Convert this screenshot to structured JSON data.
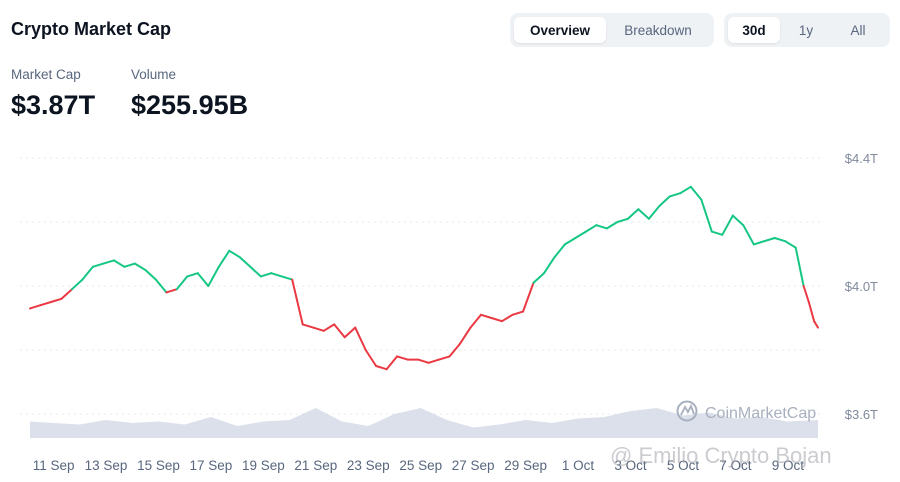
{
  "header": {
    "title": "Crypto Market Cap",
    "view_tabs": [
      {
        "label": "Overview",
        "active": true
      },
      {
        "label": "Breakdown",
        "active": false
      }
    ],
    "range_tabs": [
      {
        "label": "30d",
        "active": true
      },
      {
        "label": "1y",
        "active": false
      },
      {
        "label": "All",
        "active": false
      }
    ]
  },
  "stats": {
    "market_cap_label": "Market Cap",
    "market_cap_value": "$3.87T",
    "volume_label": "Volume",
    "volume_value": "$255.95B"
  },
  "colors": {
    "up": "#16c784",
    "down": "#ea3943",
    "volume": "#cfd6e4",
    "grid": "#e6e9ee",
    "axis_text": "#808a9d"
  },
  "baseline_value": 4.0,
  "chart_data": {
    "type": "line",
    "y_tick_labels": [
      "$4.4T",
      "$4.0T",
      "$3.6T"
    ],
    "y_ticks": [
      4.4,
      4.0,
      3.6
    ],
    "ylim": [
      3.55,
      4.45
    ],
    "x_tick_labels": [
      "11 Sep",
      "13 Sep",
      "15 Sep",
      "17 Sep",
      "19 Sep",
      "21 Sep",
      "23 Sep",
      "25 Sep",
      "27 Sep",
      "29 Sep",
      "1 Oct",
      "3 Oct",
      "5 Oct",
      "7 Oct",
      "9 Oct"
    ],
    "x_ticks": [
      1,
      3,
      5,
      7,
      9,
      11,
      13,
      15,
      17,
      19,
      21,
      23,
      25,
      27,
      29
    ],
    "xlim": [
      0.1,
      30.15
    ],
    "series": [
      {
        "x": [
          0.1,
          0.5,
          0.9,
          1.3,
          1.7,
          2.1,
          2.5,
          2.9,
          3.3,
          3.7,
          4.1,
          4.5,
          4.9,
          5.3,
          5.7,
          6.1,
          6.5,
          6.9,
          7.3,
          7.7,
          8.1,
          8.5,
          8.9,
          9.3,
          9.7,
          10.1,
          10.5,
          10.9,
          11.3,
          11.7,
          12.1,
          12.5,
          12.9,
          13.3,
          13.7,
          14.1,
          14.5,
          14.9,
          15.3,
          15.7,
          16.1,
          16.5,
          16.9,
          17.3,
          17.7,
          18.1,
          18.5,
          18.9,
          19.3,
          19.7,
          20.1,
          20.5,
          20.9,
          21.3,
          21.7,
          22.1,
          22.5,
          22.9,
          23.3,
          23.7,
          24.1,
          24.5,
          24.9,
          25.3,
          25.7,
          26.1,
          26.5,
          26.9,
          27.3,
          27.7,
          28.1,
          28.5,
          28.9,
          29.3,
          29.6,
          29.8,
          30.0,
          30.15
        ],
        "values": [
          3.93,
          3.94,
          3.95,
          3.96,
          3.99,
          4.02,
          4.06,
          4.07,
          4.08,
          4.06,
          4.07,
          4.05,
          4.02,
          3.98,
          3.99,
          4.03,
          4.04,
          4.0,
          4.06,
          4.11,
          4.09,
          4.06,
          4.03,
          4.04,
          4.03,
          4.02,
          3.88,
          3.87,
          3.86,
          3.88,
          3.84,
          3.87,
          3.8,
          3.75,
          3.74,
          3.78,
          3.77,
          3.77,
          3.76,
          3.77,
          3.78,
          3.82,
          3.87,
          3.91,
          3.9,
          3.89,
          3.91,
          3.92,
          4.01,
          4.04,
          4.09,
          4.13,
          4.15,
          4.17,
          4.19,
          4.18,
          4.2,
          4.21,
          4.24,
          4.21,
          4.25,
          4.28,
          4.29,
          4.31,
          4.27,
          4.17,
          4.16,
          4.22,
          4.19,
          4.13,
          4.14,
          4.15,
          4.14,
          4.12,
          4.0,
          3.95,
          3.89,
          3.87
        ]
      }
    ],
    "volume": {
      "x": [
        0.1,
        1.0,
        2.0,
        3.0,
        4.0,
        5.0,
        6.0,
        7.0,
        8.0,
        9.0,
        10.0,
        11.0,
        12.0,
        13.0,
        14.0,
        15.0,
        16.0,
        17.0,
        18.0,
        19.0,
        20.0,
        21.0,
        22.0,
        23.0,
        24.0,
        25.0,
        26.0,
        27.0,
        28.0,
        29.0,
        30.15
      ],
      "values": [
        0.55,
        0.5,
        0.45,
        0.6,
        0.5,
        0.55,
        0.45,
        0.7,
        0.4,
        0.55,
        0.6,
        1.0,
        0.55,
        0.4,
        0.8,
        1.0,
        0.6,
        0.35,
        0.45,
        0.6,
        0.5,
        0.65,
        0.7,
        0.9,
        1.0,
        0.75,
        0.85,
        0.65,
        0.7,
        0.55,
        0.6
      ]
    },
    "watermark": "CoinMarketCap"
  },
  "overlay_watermark": "@ Emilio Crypto Bojan"
}
